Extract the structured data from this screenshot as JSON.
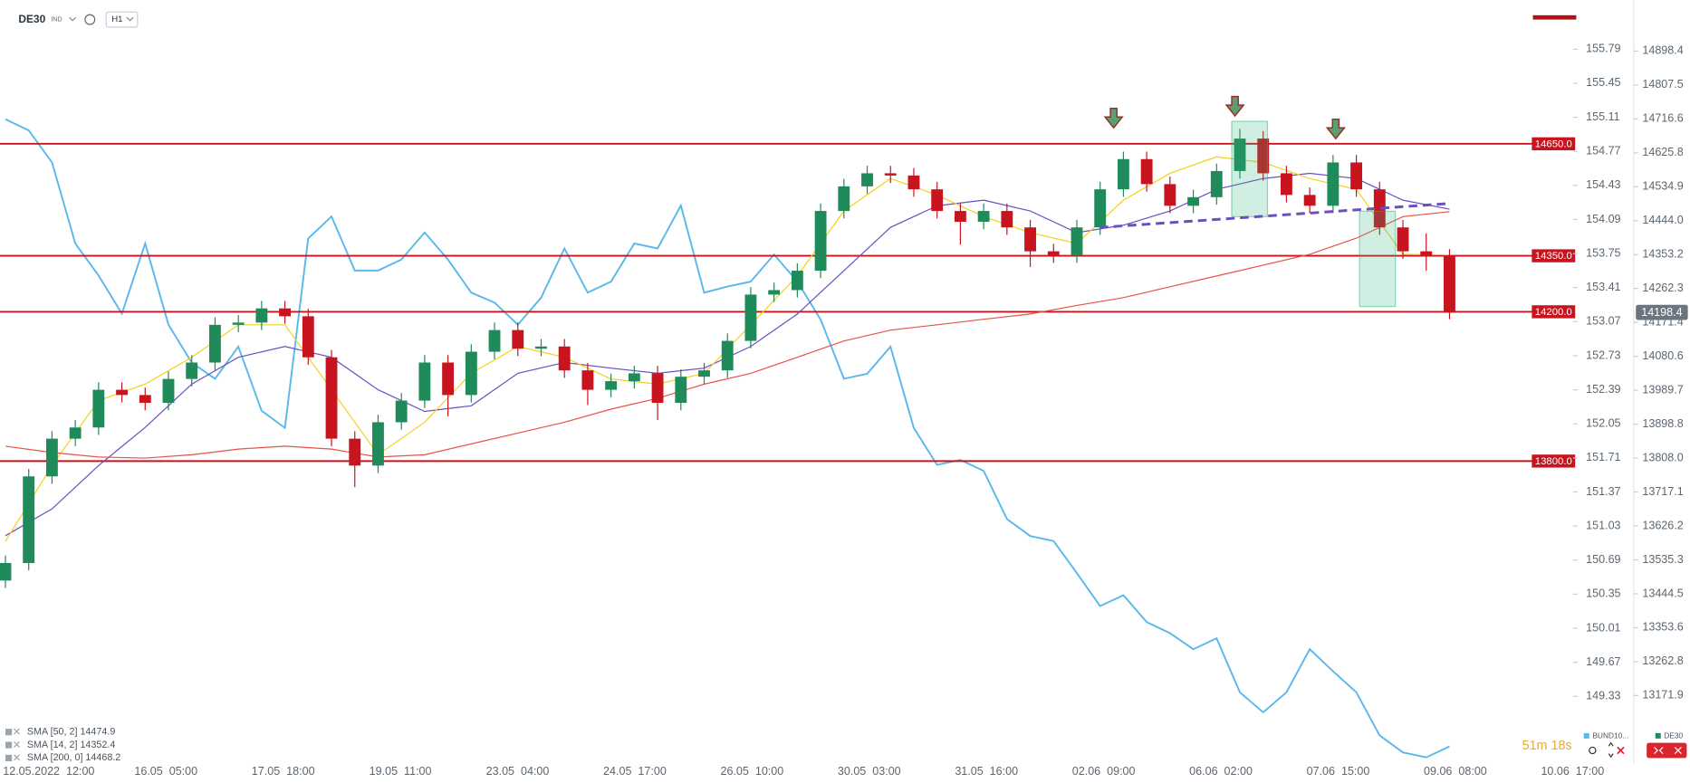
{
  "toolbar": {
    "symbol": "DE30",
    "market": "IND",
    "interval": "H1"
  },
  "timer": "51m 18s",
  "chart_data": {
    "type": "candlestick",
    "x_labels": [
      "12.05.2022  12:00",
      "16.05  05:00",
      "17.05  18:00",
      "19.05  11:00",
      "23.05  04:00",
      "24.05  17:00",
      "26.05  10:00",
      "30.05  03:00",
      "31.05  16:00",
      "02.06  09:00",
      "06.06  02:00",
      "07.06  15:00",
      "09.06  08:00",
      "10.06  17:00"
    ],
    "ylim": [
      12990,
      15035
    ],
    "yticks": [
      14898.4,
      14807.5,
      14716.6,
      14625.8,
      14534.9,
      {
        "value": 14444,
        "label": "14444.0"
      },
      14353.2,
      14262.3,
      14171.4,
      14080.6,
      13989.7,
      {
        "value": 13808,
        "label": "13808.0"
      },
      13898.8,
      13717.1,
      13626.2,
      13535.3,
      13444.5,
      13353.6,
      13262.8,
      13171.9
    ],
    "y2lim": [
      148.66,
      156.28
    ],
    "y2ticks": [
      155.79,
      155.45,
      155.11,
      154.77,
      154.43,
      154.09,
      153.75,
      153.41,
      153.07,
      152.73,
      152.39,
      152.05,
      151.71,
      151.37,
      151.03,
      150.69,
      150.35,
      150.01,
      149.67,
      149.33
    ],
    "levels": [
      {
        "value": 14650,
        "label": "14650.0"
      },
      {
        "value": 14350,
        "label": "14350.0"
      },
      {
        "value": 14200,
        "label": "14200.0"
      },
      {
        "value": 13800,
        "label": "13800.0"
      }
    ],
    "level_color": "#c8141e",
    "last_price": 14198.4,
    "candles": {
      "name": "DE30",
      "up_color": "#1f8a5a",
      "down_color": "#c8141e",
      "open": [
        13480,
        13527,
        13759,
        13860,
        13890,
        13991,
        13977,
        13956,
        14020,
        14064,
        14165,
        14171,
        14209,
        14188,
        14078,
        13860,
        13788,
        13904,
        13962,
        14064,
        13977,
        14093,
        14151,
        14101,
        14107,
        14043,
        13991,
        14014,
        14035,
        13956,
        14026,
        14043,
        14122,
        14246,
        14258,
        14310,
        14470,
        14536,
        14571,
        14565,
        14528,
        14470,
        14441,
        14470,
        14426,
        14362,
        14351,
        14426,
        14528,
        14609,
        14542,
        14484,
        14507,
        14577,
        14664,
        14571,
        14513,
        14484,
        14600,
        14528,
        14426,
        14362,
        14348
      ],
      "high": [
        13547,
        13779,
        13880,
        13910,
        14011,
        14011,
        13997,
        14040,
        14084,
        14185,
        14191,
        14229,
        14229,
        14208,
        14098,
        13880,
        13924,
        13982,
        14084,
        14084,
        14113,
        14171,
        14171,
        14127,
        14127,
        14063,
        14034,
        14055,
        14055,
        14046,
        14063,
        14142,
        14266,
        14278,
        14330,
        14490,
        14556,
        14591,
        14591,
        14585,
        14548,
        14490,
        14490,
        14490,
        14446,
        14382,
        14446,
        14548,
        14629,
        14629,
        14562,
        14527,
        14597,
        14690,
        14684,
        14591,
        14533,
        14620,
        14620,
        14548,
        14446,
        14410,
        14368
      ],
      "low": [
        13460,
        13507,
        13739,
        13840,
        13870,
        13957,
        13936,
        13936,
        14000,
        14044,
        14145,
        14151,
        14168,
        14058,
        13840,
        13730,
        13768,
        13884,
        13942,
        13920,
        13957,
        14073,
        14081,
        14081,
        14023,
        13950,
        13971,
        13994,
        13910,
        13936,
        14006,
        14023,
        14102,
        14226,
        14238,
        14290,
        14450,
        14516,
        14545,
        14508,
        14450,
        14380,
        14421,
        14406,
        14320,
        14331,
        14331,
        14406,
        14508,
        14522,
        14464,
        14464,
        14487,
        14557,
        14551,
        14493,
        14464,
        14464,
        14508,
        14406,
        14342,
        14310,
        14180
      ],
      "close": [
        13527,
        13759,
        13860,
        13890,
        13991,
        13977,
        13956,
        14020,
        14064,
        14165,
        14171,
        14209,
        14188,
        14078,
        13860,
        13788,
        13904,
        13962,
        14064,
        13977,
        14093,
        14151,
        14101,
        14107,
        14043,
        13991,
        14014,
        14035,
        13956,
        14026,
        14043,
        14122,
        14246,
        14258,
        14310,
        14470,
        14536,
        14571,
        14565,
        14528,
        14470,
        14441,
        14470,
        14426,
        14362,
        14351,
        14426,
        14528,
        14609,
        14542,
        14484,
        14507,
        14577,
        14664,
        14571,
        14513,
        14484,
        14600,
        14528,
        14426,
        14362,
        14348,
        14198
      ]
    },
    "series": [
      {
        "name": "BUND10...",
        "axis": "y2",
        "color": "#58b8ec",
        "width": 1.6,
        "values": [
          155.09,
          154.98,
          154.66,
          153.85,
          153.53,
          153.15,
          153.85,
          153.04,
          152.66,
          152.5,
          152.82,
          152.18,
          152.01,
          153.9,
          154.12,
          153.58,
          153.58,
          153.69,
          153.96,
          153.69,
          153.36,
          153.26,
          153.04,
          153.31,
          153.8,
          153.36,
          153.47,
          153.85,
          153.8,
          154.23,
          153.36,
          153.42,
          153.47,
          153.74,
          153.47,
          153.09,
          152.5,
          152.55,
          152.82,
          152.01,
          151.64,
          151.69,
          151.58,
          151.1,
          150.93,
          150.88,
          150.56,
          150.23,
          150.34,
          150.07,
          149.96,
          149.8,
          149.91,
          149.37,
          149.17,
          149.37,
          149.8,
          149.58,
          149.37,
          148.94,
          148.77,
          148.72,
          148.83
        ]
      },
      {
        "name": "SMA [50, 2] 14474.9",
        "color": "#6a4fc0",
        "width": 1,
        "values": [
          13600,
          13672,
          13788,
          13890,
          14006,
          14078,
          14107,
          14078,
          13991,
          13933,
          13948,
          14035,
          14064,
          14049,
          14035,
          14049,
          14107,
          14194,
          14310,
          14426,
          14484,
          14499,
          14470,
          14412,
          14432,
          14470,
          14528,
          14557,
          14571,
          14557,
          14499,
          14474.9
        ]
      },
      {
        "name": "SMA [14, 2] 14352.4",
        "color": "#f2d21b",
        "width": 1,
        "values": [
          13585,
          13788,
          13962,
          14006,
          14078,
          14165,
          14165,
          13991,
          13817,
          13904,
          14035,
          14107,
          14078,
          14020,
          14006,
          14035,
          14165,
          14296,
          14470,
          14557,
          14513,
          14455,
          14412,
          14383,
          14499,
          14571,
          14615,
          14600,
          14557,
          14528,
          14354,
          14352.4
        ]
      },
      {
        "name": "SMA [200, 0] 14468.2",
        "color": "#e8524a",
        "width": 1,
        "values": [
          13840,
          13823,
          13811,
          13808,
          13817,
          13832,
          13840,
          13832,
          13811,
          13817,
          13846,
          13875,
          13904,
          13939,
          13968,
          14006,
          14035,
          14078,
          14122,
          14151,
          14165,
          14180,
          14194,
          14217,
          14238,
          14267,
          14296,
          14325,
          14354,
          14397,
          14455,
          14468.2
        ]
      }
    ]
  }
}
